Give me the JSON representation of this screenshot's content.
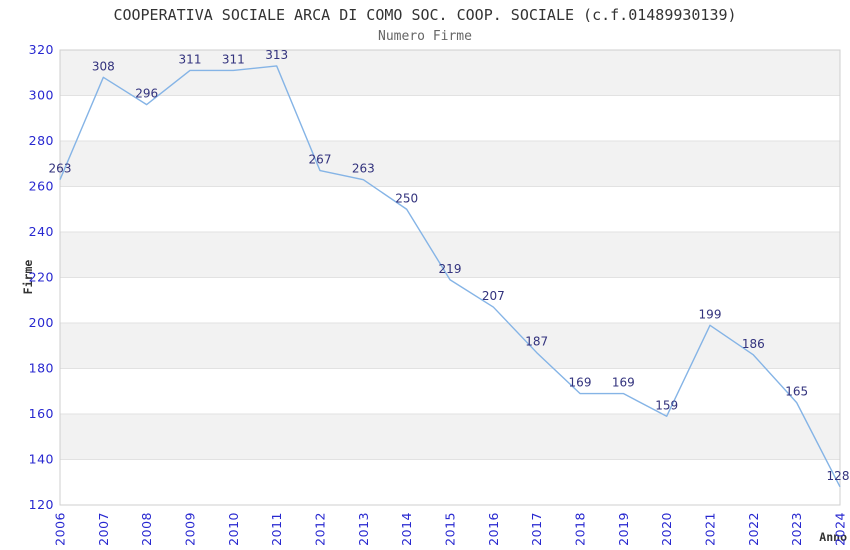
{
  "chart_data": {
    "type": "line",
    "title": "COOPERATIVA SOCIALE ARCA DI COMO SOC. COOP. SOCIALE (c.f.01489930139)",
    "subtitle": "Numero Firme",
    "xlabel": "Anno",
    "ylabel": "Firme",
    "categories": [
      "2006",
      "2007",
      "2008",
      "2009",
      "2010",
      "2011",
      "2012",
      "2013",
      "2014",
      "2015",
      "2016",
      "2017",
      "2018",
      "2019",
      "2020",
      "2021",
      "2022",
      "2023",
      "2024"
    ],
    "series": [
      {
        "name": "Numero Firme",
        "values": [
          263,
          308,
          296,
          311,
          311,
          313,
          267,
          263,
          250,
          219,
          207,
          187,
          169,
          169,
          159,
          199,
          186,
          165,
          128
        ]
      }
    ],
    "ylim": [
      120,
      320
    ],
    "yticks": [
      120,
      140,
      160,
      180,
      200,
      220,
      240,
      260,
      280,
      300,
      320
    ],
    "grid": "horizontal-alternating-bands",
    "legend": "none",
    "point_labels": true,
    "markers": "none",
    "colors": {
      "line": "#85b4e6",
      "tick_label": "#2828d0",
      "point_label": "#32327d",
      "band": "#f2f2f2",
      "gridline": "#e2e2e2",
      "border": "#cfcfcf",
      "title": "#333333",
      "subtitle": "#666666",
      "axis_title": "#333333"
    }
  }
}
